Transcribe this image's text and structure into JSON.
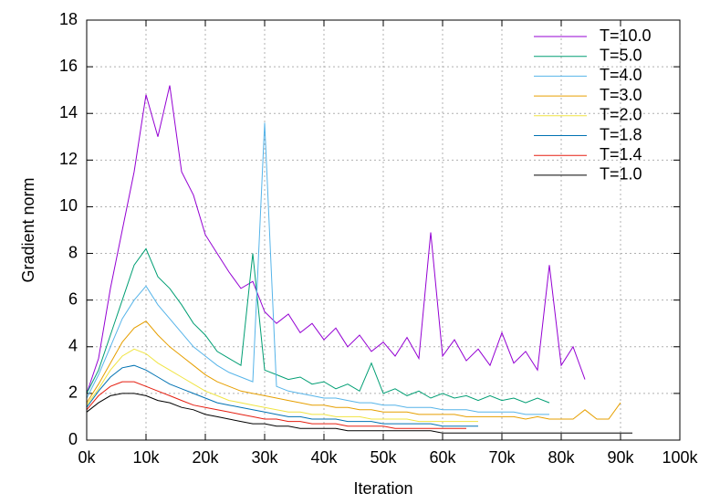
{
  "chart_data": {
    "type": "line",
    "xlabel": "Iteration",
    "ylabel": "Gradient norm",
    "xlim": [
      0,
      100000
    ],
    "ylim": [
      0,
      18
    ],
    "xticks": [
      {
        "value": 0,
        "label": "0k"
      },
      {
        "value": 10000,
        "label": "10k"
      },
      {
        "value": 20000,
        "label": "20k"
      },
      {
        "value": 30000,
        "label": "30k"
      },
      {
        "value": 40000,
        "label": "40k"
      },
      {
        "value": 50000,
        "label": "50k"
      },
      {
        "value": 60000,
        "label": "60k"
      },
      {
        "value": 70000,
        "label": "70k"
      },
      {
        "value": 80000,
        "label": "80k"
      },
      {
        "value": 90000,
        "label": "90k"
      },
      {
        "value": 100000,
        "label": "100k"
      }
    ],
    "yticks": [
      0,
      2,
      4,
      6,
      8,
      10,
      12,
      14,
      16,
      18
    ],
    "grid": true,
    "legend": "top right",
    "x": [
      0,
      2000,
      4000,
      6000,
      8000,
      10000,
      12000,
      14000,
      16000,
      18000,
      20000,
      22000,
      24000,
      26000,
      28000,
      30000,
      32000,
      34000,
      36000,
      38000,
      40000,
      42000,
      44000,
      46000,
      48000,
      50000,
      52000,
      54000,
      56000,
      58000,
      60000,
      62000,
      64000,
      66000,
      68000,
      70000,
      72000,
      74000,
      76000,
      78000,
      80000,
      82000,
      84000,
      86000,
      88000,
      90000,
      92000,
      94000
    ],
    "series": [
      {
        "name": "T=10.0",
        "color": "#9400d3",
        "values": [
          2.0,
          3.5,
          6.5,
          9.0,
          11.5,
          14.8,
          13.0,
          15.2,
          11.5,
          10.5,
          8.8,
          8.0,
          7.2,
          6.5,
          6.8,
          5.5,
          5.0,
          5.4,
          4.6,
          5.0,
          4.3,
          4.8,
          4.0,
          4.5,
          3.8,
          4.2,
          3.6,
          4.4,
          3.5,
          8.9,
          3.6,
          4.3,
          3.4,
          3.9,
          3.2,
          4.6,
          3.3,
          3.8,
          3.0,
          7.5,
          3.2,
          4.0,
          2.6,
          null,
          null,
          null,
          null,
          null
        ]
      },
      {
        "name": "T=5.0",
        "color": "#009e73",
        "values": [
          2.0,
          3.0,
          4.5,
          6.0,
          7.5,
          8.2,
          7.0,
          6.5,
          5.8,
          5.0,
          4.5,
          3.8,
          3.5,
          3.2,
          8.0,
          3.0,
          2.8,
          2.6,
          2.7,
          2.4,
          2.5,
          2.2,
          2.4,
          2.1,
          3.3,
          2.0,
          2.2,
          1.9,
          2.1,
          1.8,
          2.0,
          1.8,
          1.9,
          1.7,
          1.9,
          1.7,
          1.8,
          1.6,
          1.8,
          1.6,
          null,
          null,
          null,
          null,
          null,
          null,
          null,
          null
        ]
      },
      {
        "name": "T=4.0",
        "color": "#56b4e9",
        "values": [
          1.8,
          2.8,
          4.0,
          5.2,
          6.0,
          6.6,
          5.8,
          5.2,
          4.6,
          4.0,
          3.6,
          3.2,
          2.9,
          2.7,
          2.5,
          13.6,
          2.3,
          2.1,
          2.0,
          1.9,
          1.8,
          1.8,
          1.7,
          1.6,
          1.6,
          1.5,
          1.5,
          1.4,
          1.4,
          1.4,
          1.3,
          1.3,
          1.3,
          1.2,
          1.2,
          1.2,
          1.2,
          1.1,
          1.1,
          1.1,
          null,
          null,
          null,
          null,
          null,
          null,
          null,
          null
        ]
      },
      {
        "name": "T=3.0",
        "color": "#e69f00",
        "values": [
          1.6,
          2.4,
          3.3,
          4.2,
          4.8,
          5.1,
          4.5,
          4.0,
          3.6,
          3.2,
          2.8,
          2.5,
          2.3,
          2.1,
          2.0,
          1.9,
          1.8,
          1.7,
          1.6,
          1.5,
          1.5,
          1.4,
          1.4,
          1.3,
          1.3,
          1.2,
          1.2,
          1.2,
          1.1,
          1.1,
          1.1,
          1.1,
          1.0,
          1.0,
          1.0,
          1.0,
          1.0,
          0.9,
          1.0,
          0.9,
          0.9,
          0.9,
          1.3,
          0.9,
          0.9,
          1.6,
          null,
          null
        ]
      },
      {
        "name": "T=2.0",
        "color": "#f0e442",
        "values": [
          1.5,
          2.2,
          3.0,
          3.6,
          3.9,
          3.7,
          3.3,
          3.0,
          2.7,
          2.4,
          2.1,
          1.9,
          1.7,
          1.6,
          1.5,
          1.4,
          1.3,
          1.2,
          1.2,
          1.1,
          1.1,
          1.0,
          1.0,
          1.0,
          0.9,
          0.9,
          0.9,
          0.9,
          0.8,
          0.8,
          0.8,
          0.8,
          0.8,
          0.8,
          null,
          null,
          null,
          null,
          null,
          null,
          null,
          null,
          null,
          null,
          null,
          null,
          null,
          null
        ]
      },
      {
        "name": "T=1.8",
        "color": "#0072b2",
        "values": [
          1.4,
          2.1,
          2.7,
          3.1,
          3.2,
          3.0,
          2.7,
          2.4,
          2.2,
          2.0,
          1.8,
          1.6,
          1.5,
          1.4,
          1.3,
          1.2,
          1.1,
          1.0,
          1.0,
          0.9,
          0.9,
          0.9,
          0.8,
          0.8,
          0.8,
          0.7,
          0.7,
          0.7,
          0.7,
          0.7,
          0.6,
          0.6,
          0.6,
          0.6,
          null,
          null,
          null,
          null,
          null,
          null,
          null,
          null,
          null,
          null,
          null,
          null,
          null,
          null
        ]
      },
      {
        "name": "T=1.4",
        "color": "#e51e10",
        "values": [
          1.3,
          1.9,
          2.3,
          2.5,
          2.5,
          2.3,
          2.1,
          1.9,
          1.7,
          1.5,
          1.4,
          1.3,
          1.2,
          1.1,
          1.0,
          0.9,
          0.9,
          0.8,
          0.8,
          0.7,
          0.7,
          0.7,
          0.6,
          0.6,
          0.6,
          0.6,
          0.5,
          0.5,
          0.5,
          0.5,
          0.5,
          0.5,
          0.5,
          null,
          null,
          null,
          null,
          null,
          null,
          null,
          null,
          null,
          null,
          null,
          null,
          null,
          null,
          null
        ]
      },
      {
        "name": "T=1.0",
        "color": "#000000",
        "values": [
          1.2,
          1.6,
          1.9,
          2.0,
          2.0,
          1.9,
          1.7,
          1.6,
          1.4,
          1.3,
          1.1,
          1.0,
          0.9,
          0.8,
          0.7,
          0.7,
          0.6,
          0.6,
          0.5,
          0.5,
          0.5,
          0.5,
          0.4,
          0.4,
          0.4,
          0.4,
          0.4,
          0.4,
          0.4,
          0.4,
          0.3,
          0.3,
          0.3,
          0.3,
          0.3,
          0.3,
          0.3,
          0.3,
          0.3,
          0.3,
          0.3,
          0.3,
          0.3,
          0.3,
          0.3,
          0.3,
          0.3,
          null
        ]
      }
    ]
  }
}
